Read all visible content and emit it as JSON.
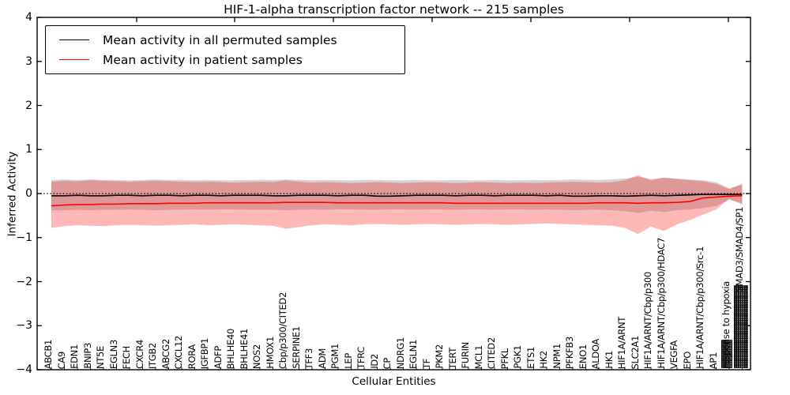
{
  "figure": {
    "title": "HIF-1-alpha transcription factor network -- 215 samples",
    "ylabel": "Inferred Activity",
    "xlabel": "Cellular Entities"
  },
  "legend": {
    "position": "upper left",
    "items": [
      {
        "label": "Mean activity in all permuted samples",
        "color": "#000000"
      },
      {
        "label": "Mean activity in patient samples",
        "color": "#ff0000"
      }
    ]
  },
  "chart_data": {
    "type": "line",
    "title": "HIF-1-alpha transcription factor network -- 215 samples",
    "xlabel": "Cellular Entities",
    "ylabel": "Inferred Activity",
    "ylim": [
      -4,
      4
    ],
    "yticks": [
      4,
      3,
      2,
      1,
      0,
      -1,
      -2,
      -3,
      -4
    ],
    "grid": false,
    "legend_position": "upper left",
    "reference_line": {
      "y": 0,
      "style": "dotted",
      "color": "#000000"
    },
    "notes": "x tick labels rotated 90deg inside axes; rightmost two label positions contain many overlapping unreadable labels",
    "categories": [
      "ABCB1",
      "CA9",
      "EDN1",
      "BNIP3",
      "NT5E",
      "EGLN3",
      "FECH",
      "CXCR4",
      "ITGB2",
      "ABCG2",
      "CXCL12",
      "RORA",
      "IGFBP1",
      "ADFP",
      "BHLHE40",
      "BHLHE41",
      "NOS2",
      "HMOX1",
      "Cbp/p300/CITED2",
      "SERPINE1",
      "TFF3",
      "ADM",
      "PGM1",
      "LEP",
      "TFRC",
      "ID2",
      "CP",
      "NDRG1",
      "EGLN1",
      "TF",
      "PKM2",
      "TERT",
      "FURIN",
      "MCL1",
      "CITED2",
      "PFKL",
      "PGK1",
      "ETS1",
      "HK2",
      "NPM1",
      "PFKFB3",
      "ENO1",
      "ALDOA",
      "HK1",
      "HIF1A/ARNT",
      "SLC2A1",
      "HIF1A/ARNT/Cbp/p300",
      "HIF1A/ARNT/Cbp/p300/HDAC7",
      "VEGFA",
      "EPO",
      "HIF1A/ARNT/Cbp/p300/Src-1",
      "AP1",
      "response to hypoxia",
      "SMAD3/SMAD4/SP1"
    ],
    "series": [
      {
        "name": "Mean activity in all permuted samples",
        "color": "#000000",
        "values": [
          -0.05,
          -0.05,
          -0.04,
          -0.05,
          -0.05,
          -0.04,
          -0.04,
          -0.05,
          -0.04,
          -0.04,
          -0.05,
          -0.04,
          -0.04,
          -0.05,
          -0.04,
          -0.04,
          -0.04,
          -0.05,
          -0.05,
          -0.04,
          -0.04,
          -0.04,
          -0.05,
          -0.04,
          -0.04,
          -0.06,
          -0.06,
          -0.05,
          -0.04,
          -0.04,
          -0.04,
          -0.05,
          -0.04,
          -0.04,
          -0.05,
          -0.04,
          -0.04,
          -0.04,
          -0.05,
          -0.04,
          -0.06,
          -0.06,
          -0.05,
          -0.05,
          -0.06,
          -0.05,
          -0.04,
          -0.05,
          -0.04,
          -0.03,
          -0.02,
          -0.02,
          -0.02,
          -0.02
        ]
      },
      {
        "name": "Mean activity in patient samples",
        "color": "#ff0000",
        "values": [
          -0.28,
          -0.26,
          -0.25,
          -0.25,
          -0.24,
          -0.24,
          -0.23,
          -0.23,
          -0.23,
          -0.22,
          -0.22,
          -0.22,
          -0.21,
          -0.21,
          -0.21,
          -0.21,
          -0.21,
          -0.21,
          -0.2,
          -0.2,
          -0.2,
          -0.2,
          -0.21,
          -0.21,
          -0.21,
          -0.21,
          -0.21,
          -0.21,
          -0.21,
          -0.21,
          -0.21,
          -0.22,
          -0.22,
          -0.22,
          -0.22,
          -0.22,
          -0.22,
          -0.22,
          -0.22,
          -0.22,
          -0.22,
          -0.22,
          -0.21,
          -0.21,
          -0.21,
          -0.22,
          -0.21,
          -0.21,
          -0.2,
          -0.18,
          -0.1,
          -0.08,
          -0.06,
          -0.05
        ]
      }
    ],
    "bands": [
      {
        "name": "permuted samples std band",
        "color": "#808080",
        "opacity": 0.35,
        "upper": [
          0.31,
          0.32,
          0.31,
          0.32,
          0.31,
          0.31,
          0.3,
          0.31,
          0.32,
          0.31,
          0.31,
          0.3,
          0.31,
          0.3,
          0.3,
          0.31,
          0.31,
          0.31,
          0.32,
          0.31,
          0.3,
          0.31,
          0.3,
          0.3,
          0.31,
          0.31,
          0.3,
          0.3,
          0.31,
          0.3,
          0.3,
          0.31,
          0.3,
          0.3,
          0.31,
          0.3,
          0.3,
          0.31,
          0.3,
          0.31,
          0.32,
          0.31,
          0.31,
          0.32,
          0.34,
          0.38,
          0.33,
          0.36,
          0.34,
          0.32,
          0.3,
          0.26,
          0.12,
          0.2
        ],
        "lower": [
          -0.38,
          -0.38,
          -0.37,
          -0.38,
          -0.37,
          -0.37,
          -0.36,
          -0.37,
          -0.38,
          -0.37,
          -0.37,
          -0.36,
          -0.37,
          -0.36,
          -0.36,
          -0.37,
          -0.37,
          -0.37,
          -0.38,
          -0.37,
          -0.36,
          -0.37,
          -0.36,
          -0.36,
          -0.37,
          -0.37,
          -0.36,
          -0.36,
          -0.37,
          -0.36,
          -0.36,
          -0.37,
          -0.36,
          -0.36,
          -0.37,
          -0.36,
          -0.36,
          -0.37,
          -0.36,
          -0.37,
          -0.38,
          -0.37,
          -0.37,
          -0.38,
          -0.4,
          -0.44,
          -0.39,
          -0.42,
          -0.38,
          -0.36,
          -0.33,
          -0.28,
          -0.14,
          -0.22
        ]
      },
      {
        "name": "patient samples std band",
        "color": "#ff0000",
        "opacity": 0.28,
        "upper": [
          0.27,
          0.29,
          0.28,
          0.3,
          0.29,
          0.28,
          0.27,
          0.28,
          0.29,
          0.28,
          0.27,
          0.26,
          0.27,
          0.26,
          0.25,
          0.26,
          0.27,
          0.26,
          0.3,
          0.27,
          0.25,
          0.26,
          0.25,
          0.24,
          0.25,
          0.26,
          0.25,
          0.24,
          0.25,
          0.26,
          0.25,
          0.24,
          0.25,
          0.26,
          0.25,
          0.24,
          0.25,
          0.24,
          0.25,
          0.26,
          0.27,
          0.26,
          0.25,
          0.26,
          0.3,
          0.42,
          0.3,
          0.36,
          0.33,
          0.3,
          0.28,
          0.22,
          0.1,
          0.22
        ],
        "lower": [
          -0.78,
          -0.74,
          -0.72,
          -0.73,
          -0.74,
          -0.72,
          -0.71,
          -0.72,
          -0.73,
          -0.72,
          -0.71,
          -0.7,
          -0.72,
          -0.71,
          -0.7,
          -0.71,
          -0.72,
          -0.73,
          -0.8,
          -0.76,
          -0.72,
          -0.7,
          -0.71,
          -0.72,
          -0.7,
          -0.69,
          -0.7,
          -0.71,
          -0.7,
          -0.69,
          -0.7,
          -0.71,
          -0.7,
          -0.69,
          -0.7,
          -0.71,
          -0.7,
          -0.69,
          -0.68,
          -0.69,
          -0.7,
          -0.71,
          -0.72,
          -0.73,
          -0.78,
          -0.92,
          -0.75,
          -0.85,
          -0.7,
          -0.6,
          -0.48,
          -0.36,
          -0.12,
          -0.25
        ]
      }
    ]
  }
}
